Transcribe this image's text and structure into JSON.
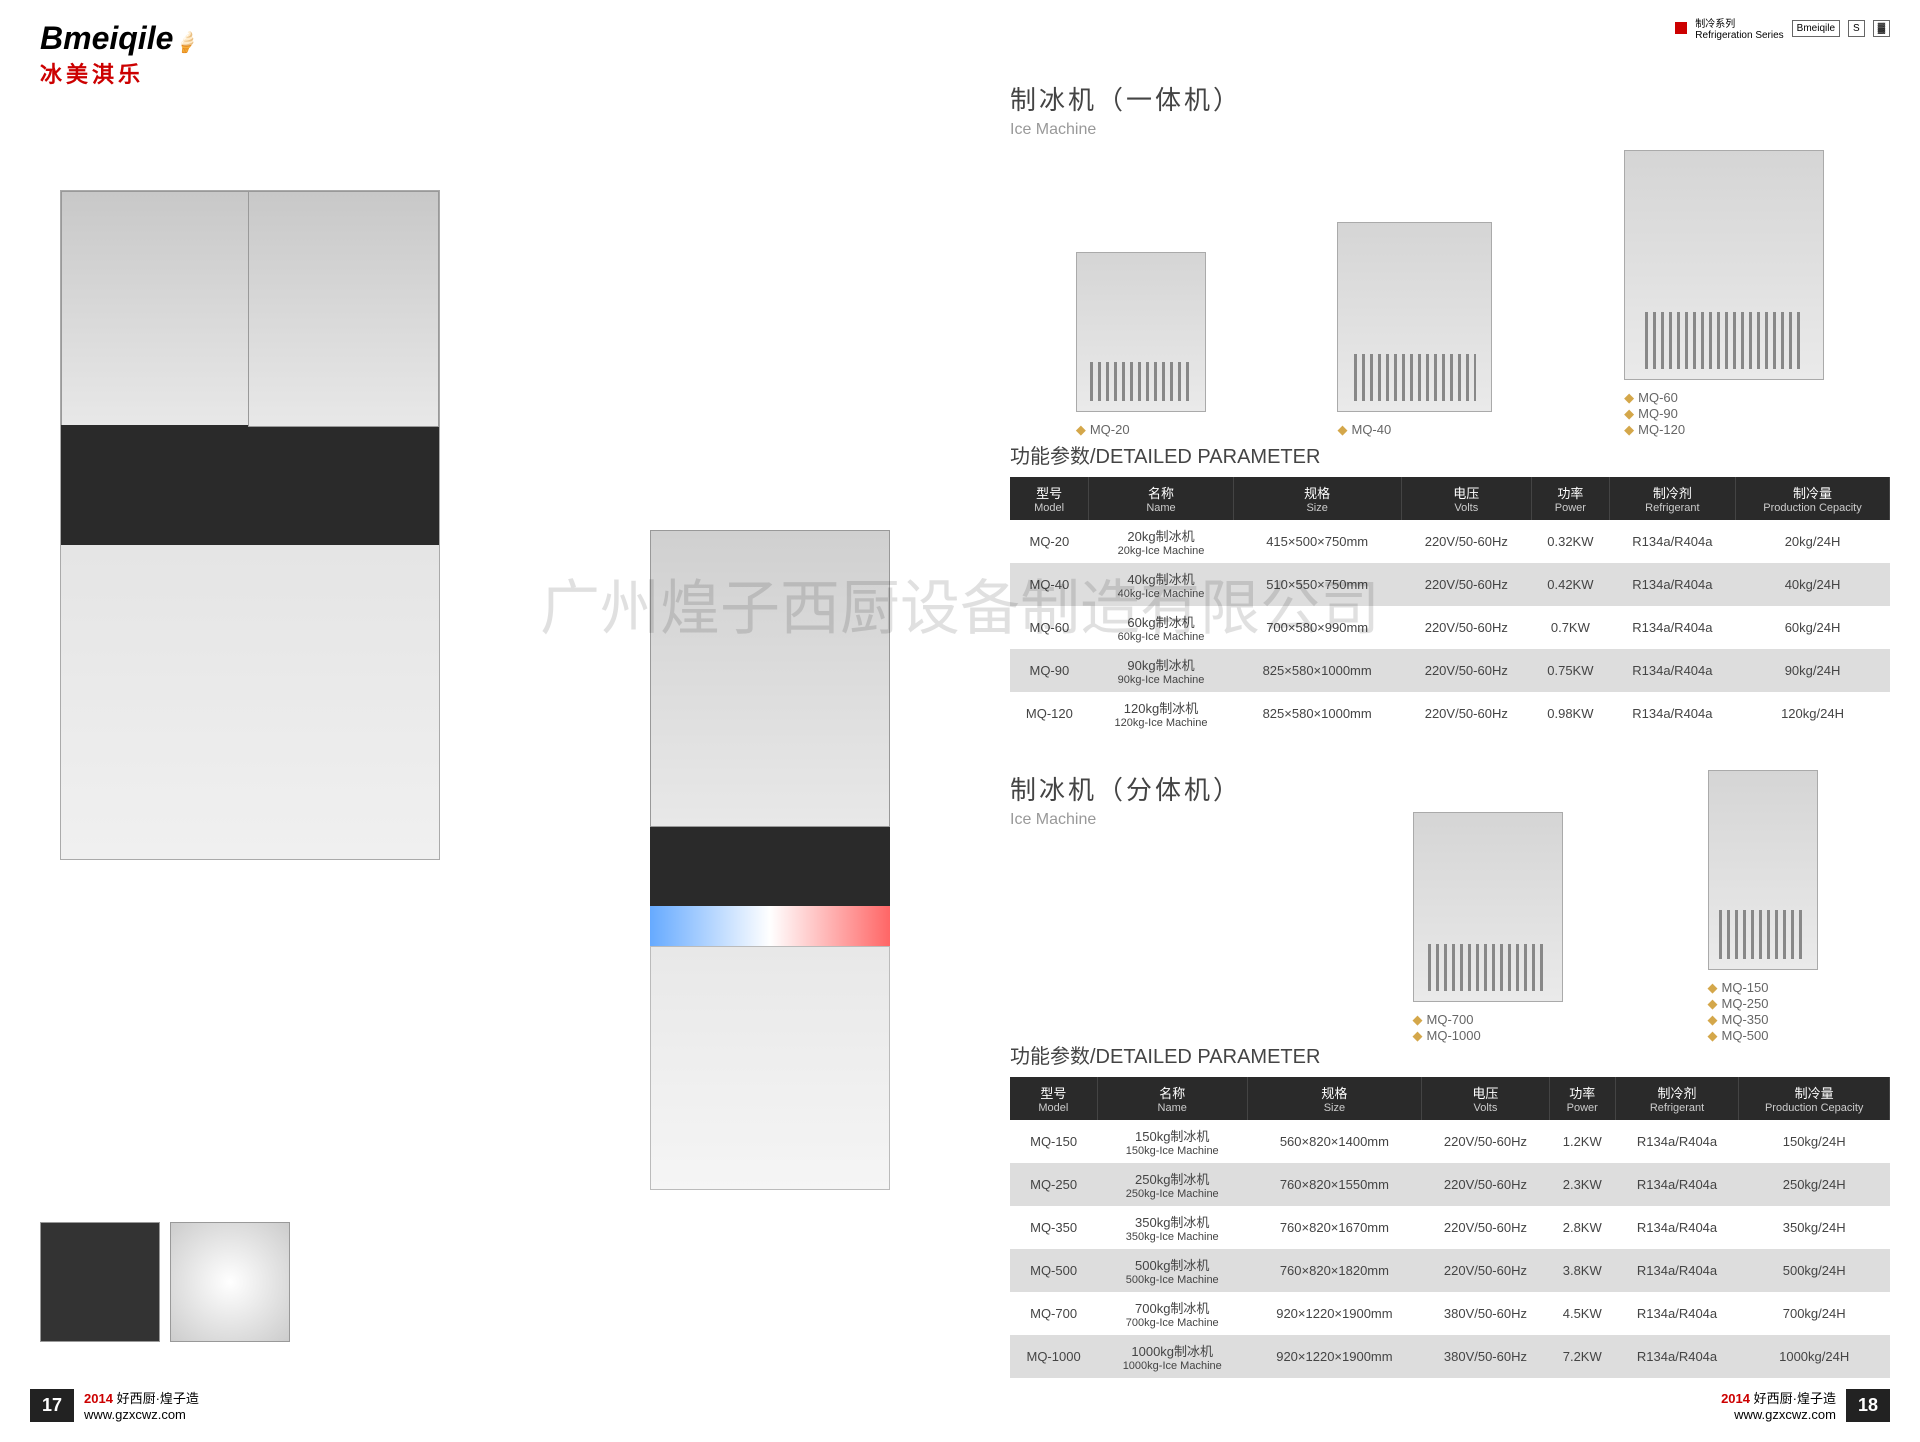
{
  "logo": {
    "text": "Bmeiqile",
    "cn": "冰美淇乐"
  },
  "topBadge": {
    "cn": "制冷系列",
    "en": "Refrigeration Series"
  },
  "section1": {
    "cn": "制冰机（一体机）",
    "en": "Ice Machine"
  },
  "section2": {
    "cn": "制冰机（分体机）",
    "en": "Ice Machine"
  },
  "paramTitle": "功能参数/DETAILED PARAMETER",
  "headers": [
    {
      "cn": "型号",
      "en": "Model"
    },
    {
      "cn": "名称",
      "en": "Name"
    },
    {
      "cn": "规格",
      "en": "Size"
    },
    {
      "cn": "电压",
      "en": "Volts"
    },
    {
      "cn": "功率",
      "en": "Power"
    },
    {
      "cn": "制冷剂",
      "en": "Refrigerant"
    },
    {
      "cn": "制冷量",
      "en": "Production Cepacity"
    }
  ],
  "prods1": [
    {
      "labels": [
        "MQ-20"
      ]
    },
    {
      "labels": [
        "MQ-40"
      ]
    },
    {
      "labels": [
        "MQ-60",
        "MQ-90",
        "MQ-120"
      ]
    }
  ],
  "prods2": [
    {
      "labels": [
        "MQ-700",
        "MQ-1000"
      ]
    },
    {
      "labels": [
        "MQ-150",
        "MQ-250",
        "MQ-350",
        "MQ-500"
      ]
    }
  ],
  "table1": [
    {
      "model": "MQ-20",
      "nameCn": "20kg制冰机",
      "nameEn": "20kg-Ice Machine",
      "size": "415×500×750mm",
      "volts": "220V/50-60Hz",
      "power": "0.32KW",
      "ref": "R134a/R404a",
      "cap": "20kg/24H"
    },
    {
      "model": "MQ-40",
      "nameCn": "40kg制冰机",
      "nameEn": "40kg-Ice Machine",
      "size": "510×550×750mm",
      "volts": "220V/50-60Hz",
      "power": "0.42KW",
      "ref": "R134a/R404a",
      "cap": "40kg/24H"
    },
    {
      "model": "MQ-60",
      "nameCn": "60kg制冰机",
      "nameEn": "60kg-Ice Machine",
      "size": "700×580×990mm",
      "volts": "220V/50-60Hz",
      "power": "0.7KW",
      "ref": "R134a/R404a",
      "cap": "60kg/24H"
    },
    {
      "model": "MQ-90",
      "nameCn": "90kg制冰机",
      "nameEn": "90kg-Ice Machine",
      "size": "825×580×1000mm",
      "volts": "220V/50-60Hz",
      "power": "0.75KW",
      "ref": "R134a/R404a",
      "cap": "90kg/24H"
    },
    {
      "model": "MQ-120",
      "nameCn": "120kg制冰机",
      "nameEn": "120kg-Ice Machine",
      "size": "825×580×1000mm",
      "volts": "220V/50-60Hz",
      "power": "0.98KW",
      "ref": "R134a/R404a",
      "cap": "120kg/24H"
    }
  ],
  "table2": [
    {
      "model": "MQ-150",
      "nameCn": "150kg制冰机",
      "nameEn": "150kg-Ice Machine",
      "size": "560×820×1400mm",
      "volts": "220V/50-60Hz",
      "power": "1.2KW",
      "ref": "R134a/R404a",
      "cap": "150kg/24H"
    },
    {
      "model": "MQ-250",
      "nameCn": "250kg制冰机",
      "nameEn": "250kg-Ice Machine",
      "size": "760×820×1550mm",
      "volts": "220V/50-60Hz",
      "power": "2.3KW",
      "ref": "R134a/R404a",
      "cap": "250kg/24H"
    },
    {
      "model": "MQ-350",
      "nameCn": "350kg制冰机",
      "nameEn": "350kg-Ice Machine",
      "size": "760×820×1670mm",
      "volts": "220V/50-60Hz",
      "power": "2.8KW",
      "ref": "R134a/R404a",
      "cap": "350kg/24H"
    },
    {
      "model": "MQ-500",
      "nameCn": "500kg制冰机",
      "nameEn": "500kg-Ice Machine",
      "size": "760×820×1820mm",
      "volts": "220V/50-60Hz",
      "power": "3.8KW",
      "ref": "R134a/R404a",
      "cap": "500kg/24H"
    },
    {
      "model": "MQ-700",
      "nameCn": "700kg制冰机",
      "nameEn": "700kg-Ice Machine",
      "size": "920×1220×1900mm",
      "volts": "380V/50-60Hz",
      "power": "4.5KW",
      "ref": "R134a/R404a",
      "cap": "700kg/24H"
    },
    {
      "model": "MQ-1000",
      "nameCn": "1000kg制冰机",
      "nameEn": "1000kg-Ice Machine",
      "size": "920×1220×1900mm",
      "volts": "380V/50-60Hz",
      "power": "7.2KW",
      "ref": "R134a/R404a",
      "cap": "1000kg/24H"
    }
  ],
  "footer": {
    "year": "2014",
    "tag": "好西厨·煌子造",
    "url": "www.gzxcwz.com",
    "p1": "17",
    "p2": "18"
  },
  "watermark": "广州煌子西厨设备制造有限公司"
}
